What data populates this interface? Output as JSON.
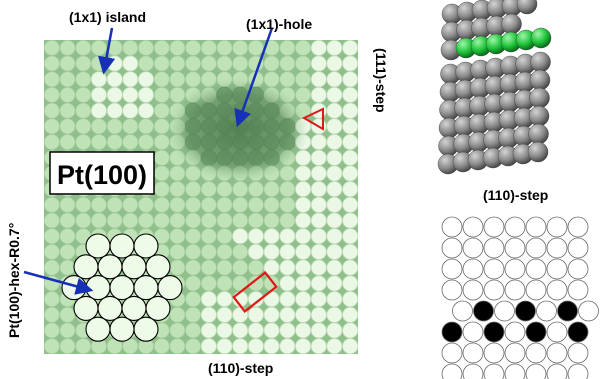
{
  "labels": {
    "island": "(1x1) island",
    "hole": "(1x1)-hole",
    "step_111": "(111)-step",
    "step_110_bottom": "(110)-step",
    "step_110_right": "(110)-step",
    "pt100": "Pt(100)",
    "hex": "Pt(100)-hex-R0.7°"
  },
  "colors": {
    "surface_bg": "#8fbf8b",
    "atom_light": "#eaf8e5",
    "atom_mid": "#bfe3b6",
    "atom_dark": "#6f9f6c",
    "hole": "#5d8a5e",
    "arrow": "#1730b8",
    "marker": "#e01818",
    "green_atom": "#1fc43a",
    "grey_atom": "#8b8b8b",
    "black_atom": "#000000"
  }
}
